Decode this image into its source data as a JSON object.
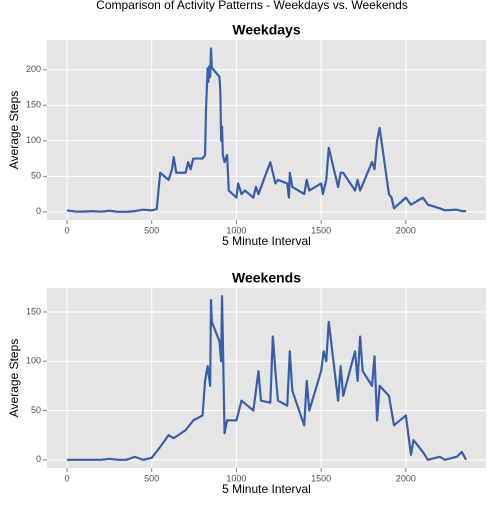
{
  "title": "Comparison of Activity Patterns - Weekdays vs. Weekends",
  "chart_data": [
    {
      "type": "line",
      "title": "Weekdays",
      "x_label": "5 Minute Interval",
      "y_label": "Average Steps",
      "color": "#3a5fa8",
      "xlim": [
        -117.75,
        2472.75
      ],
      "xticks": [
        0,
        500,
        1000,
        1500,
        2000
      ],
      "ylim": [
        -11.5,
        241.9
      ],
      "yticks": [
        0,
        50,
        100,
        150,
        200
      ],
      "grid": true,
      "x": [
        0,
        50,
        100,
        150,
        200,
        250,
        300,
        350,
        400,
        450,
        500,
        530,
        550,
        600,
        620,
        630,
        645,
        700,
        715,
        730,
        745,
        800,
        815,
        820,
        830,
        835,
        840,
        845,
        850,
        855,
        900,
        905,
        910,
        915,
        920,
        930,
        945,
        955,
        1000,
        1010,
        1030,
        1050,
        1100,
        1115,
        1130,
        1200,
        1210,
        1230,
        1245,
        1300,
        1310,
        1315,
        1330,
        1400,
        1415,
        1430,
        1500,
        1510,
        1530,
        1545,
        1600,
        1615,
        1630,
        1700,
        1715,
        1730,
        1800,
        1815,
        1830,
        1845,
        1900,
        1915,
        1930,
        2000,
        2030,
        2100,
        2130,
        2200,
        2230,
        2300,
        2330,
        2355
      ],
      "values": [
        2,
        0.5,
        0.3,
        1,
        0.2,
        1.5,
        0,
        0,
        1,
        3,
        2,
        4,
        55,
        45,
        60,
        77,
        55,
        55,
        70,
        60,
        75,
        75,
        80,
        140,
        202,
        183,
        205,
        190,
        230,
        203,
        190,
        170,
        100,
        120,
        80,
        70,
        80,
        30,
        20,
        40,
        25,
        30,
        20,
        35,
        25,
        70,
        60,
        40,
        45,
        40,
        20,
        55,
        35,
        25,
        45,
        30,
        40,
        25,
        45,
        90,
        35,
        55,
        55,
        30,
        45,
        30,
        70,
        60,
        100,
        118,
        25,
        20,
        5,
        20,
        10,
        20,
        10,
        5,
        2,
        3,
        1,
        1
      ]
    },
    {
      "type": "line",
      "title": "Weekends",
      "x_label": "5 Minute Interval",
      "y_label": "Average Steps",
      "color": "#3a5fa8",
      "xlim": [
        -117.75,
        2472.75
      ],
      "xticks": [
        0,
        500,
        1000,
        1500,
        2000
      ],
      "ylim": [
        -8.3,
        174.3
      ],
      "yticks": [
        0,
        50,
        100,
        150
      ],
      "grid": true,
      "x": [
        0,
        50,
        100,
        150,
        200,
        250,
        300,
        350,
        400,
        450,
        500,
        550,
        600,
        630,
        700,
        745,
        800,
        815,
        830,
        845,
        850,
        855,
        900,
        910,
        915,
        930,
        945,
        1000,
        1030,
        1100,
        1130,
        1145,
        1200,
        1215,
        1230,
        1245,
        1300,
        1315,
        1330,
        1400,
        1415,
        1430,
        1500,
        1515,
        1530,
        1545,
        1600,
        1615,
        1630,
        1700,
        1715,
        1730,
        1745,
        1800,
        1815,
        1830,
        1845,
        1900,
        1930,
        2000,
        2030,
        2045,
        2100,
        2130,
        2200,
        2230,
        2300,
        2330,
        2355
      ],
      "values": [
        0,
        0,
        0,
        0,
        0,
        1,
        0,
        0,
        3,
        0,
        2,
        13,
        25,
        22,
        30,
        40,
        45,
        80,
        95,
        75,
        162,
        140,
        120,
        100,
        166,
        27,
        40,
        40,
        60,
        50,
        90,
        60,
        58,
        125,
        90,
        60,
        55,
        110,
        70,
        35,
        80,
        50,
        90,
        110,
        100,
        140,
        60,
        95,
        65,
        110,
        80,
        125,
        90,
        75,
        105,
        40,
        75,
        65,
        35,
        45,
        5,
        20,
        8,
        0,
        3,
        0,
        3,
        8,
        0
      ]
    }
  ]
}
